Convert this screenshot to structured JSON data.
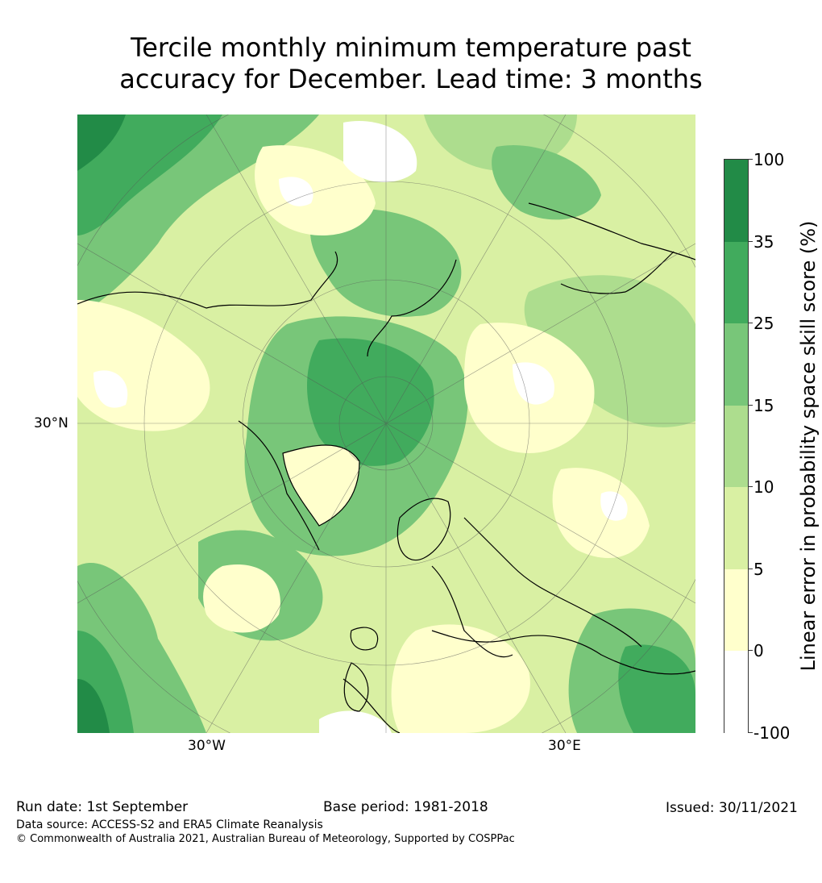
{
  "title_line1": "Tercile monthly minimum temperature past",
  "title_line2": "accuracy for December. Lead time: 3 months",
  "axis_labels": {
    "lat_30n": "30°N",
    "lon_30w": "30°W",
    "lon_30e": "30°E"
  },
  "colorbar": {
    "title": "Linear error in probability space skill score (%)",
    "ticks": [
      "100",
      "35",
      "25",
      "15",
      "10",
      "5",
      "0",
      "-100"
    ],
    "colors": [
      "#228b47",
      "#41ab5d",
      "#78c679",
      "#addd8e",
      "#d9f0a3",
      "#ffffcc",
      "#ffffff"
    ]
  },
  "footer": {
    "run_date": "Run date: 1st September",
    "base_period": "Base period: 1981-2018",
    "issued": "Issued: 30/11/2021",
    "data_source": "Data source: ACCESS-S2 and ERA5 Climate Reanalysis",
    "copyright": "© Commonwealth of Australia 2021, Australian Bureau of Meteorology, Supported by COSPPac"
  }
}
